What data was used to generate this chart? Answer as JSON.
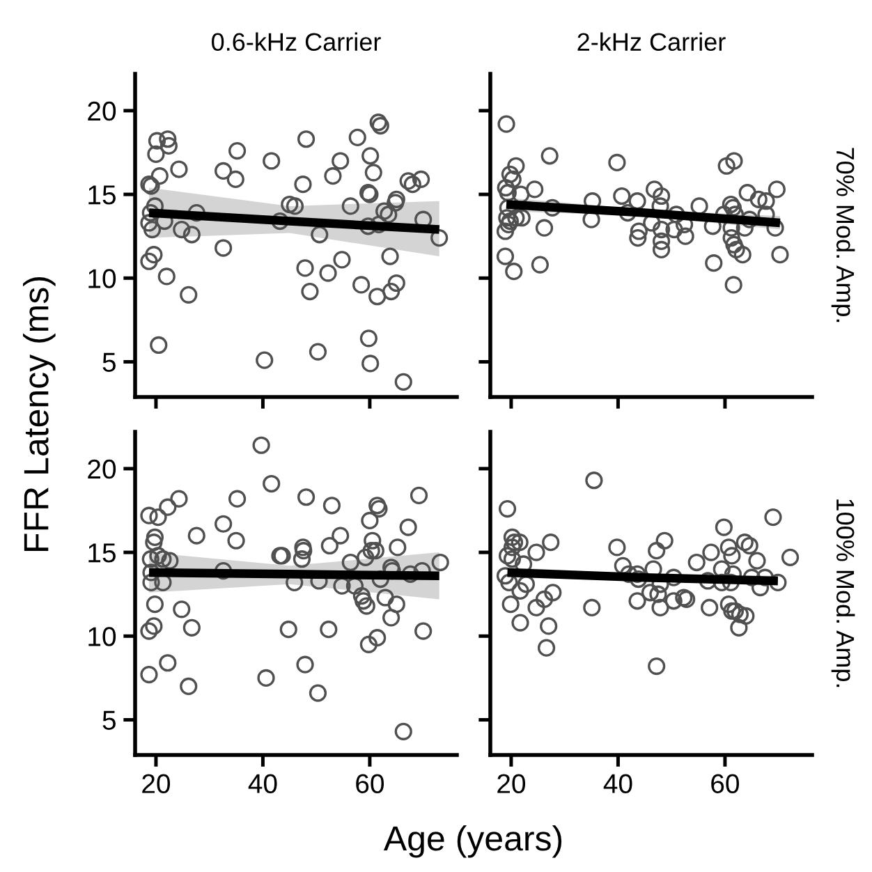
{
  "chart_data": [
    {
      "type": "scatter",
      "title": "0.6-kHz Carrier",
      "ylabel": "FFR Latency (ms)",
      "xlim": [
        16.1,
        76.3
      ],
      "ylim": [
        2.9,
        22.2
      ],
      "xticks": [
        20,
        40,
        60
      ],
      "yticks": [
        5,
        10,
        15,
        20
      ],
      "tick_labels": "y",
      "series": [
        {
          "marker": "circle",
          "color": "#505050",
          "x": [
            18.7,
            20,
            20.2,
            22.2,
            22.4,
            20.7,
            24.3,
            19.1,
            19.8,
            19,
            18.7,
            19.3,
            21.6,
            24.8,
            26.7,
            27.6,
            19.6,
            18.7,
            22,
            26.1,
            20.5,
            32.6,
            35.2,
            34.9,
            32.6,
            41.6,
            40.3,
            43.2,
            45,
            46,
            47.5,
            48.1,
            50.6,
            47.9,
            48.8,
            52.2,
            54.8,
            50.3,
            53.1,
            54.5,
            56.4,
            57.7,
            58.4,
            59.7,
            60.1,
            60.7,
            60,
            59.7,
            61.7,
            61.6,
            62,
            61.4,
            59.8,
            60.1,
            62.7,
            63.5,
            63.8,
            64,
            65,
            65,
            64.8,
            67.2,
            68,
            69.6,
            70,
            73,
            66.3
          ],
          "values": [
            15.6,
            17.4,
            18.2,
            18.3,
            17.9,
            16.1,
            16.5,
            15.5,
            14.3,
            13.9,
            13.3,
            12.9,
            13.4,
            12.9,
            12.6,
            13.9,
            11.4,
            11,
            10.1,
            9,
            6,
            16.4,
            17.6,
            15.9,
            11.8,
            17,
            5.1,
            13.4,
            14.4,
            14.3,
            15.6,
            18.3,
            12.6,
            10.6,
            9.2,
            10.3,
            11.1,
            5.6,
            16.1,
            17,
            14.3,
            18.4,
            9.6,
            15.1,
            17.3,
            16.3,
            15,
            13.1,
            13.2,
            19.3,
            19.1,
            8.9,
            6.4,
            4.9,
            14,
            13.8,
            11.3,
            9.2,
            9.7,
            14.7,
            14.5,
            15.8,
            15.6,
            15.9,
            13.5,
            12.4,
            3.8
          ]
        },
        {
          "type": "line",
          "color": "#000000",
          "x": [
            18.7,
            45,
            73
          ],
          "values": [
            13.9,
            13.4,
            12.9
          ],
          "lower": [
            12.4,
            12.7,
            11.3
          ],
          "upper": [
            15.4,
            14.3,
            14.6
          ]
        }
      ]
    },
    {
      "type": "scatter",
      "title": "2-kHz Carrier",
      "annotations": [
        "70% Mod. Amp."
      ],
      "xlim": [
        16.1,
        76.3
      ],
      "ylim": [
        2.9,
        22.2
      ],
      "xticks": [
        20,
        40,
        60
      ],
      "yticks": [
        5,
        10,
        15,
        20
      ],
      "tick_labels": false,
      "series": [
        {
          "marker": "circle",
          "color": "#505050",
          "x": [
            19.1,
            19.8,
            20.9,
            20.3,
            19,
            19.4,
            21.8,
            24.4,
            27.2,
            19.4,
            19.2,
            19.8,
            18.9,
            19.5,
            20.9,
            22,
            26.2,
            27.7,
            18.9,
            20.5,
            25.4,
            35.2,
            35,
            39.8,
            40.7,
            41.8,
            43.6,
            43.9,
            43.7,
            46.8,
            48.1,
            47.9,
            46.3,
            48.1,
            48.1,
            48.1,
            50.9,
            50.5,
            52.6,
            52.4,
            55.2,
            57.7,
            57.9,
            59.8,
            60.3,
            61.7,
            61.1,
            61.5,
            61.9,
            61.2,
            61.2,
            61.7,
            62.1,
            63.3,
            63.7,
            64.2,
            61.6,
            66.3,
            67.7,
            67.7,
            69.7,
            69.4,
            70.3,
            64.6
          ],
          "values": [
            19.2,
            16.2,
            16.7,
            15.9,
            15.4,
            15.1,
            15,
            15.3,
            17.3,
            14.2,
            13.6,
            13.4,
            12.8,
            13.2,
            13.6,
            13.6,
            13,
            14.2,
            11.3,
            10.4,
            10.8,
            14.6,
            13.5,
            16.9,
            14.9,
            13.9,
            14.6,
            12.8,
            12.4,
            15.3,
            14.9,
            14.3,
            13.3,
            12.9,
            12.2,
            11.7,
            13.8,
            12.9,
            12.5,
            13.2,
            14.3,
            13.1,
            10.9,
            13.8,
            16.7,
            17,
            14.4,
            14.2,
            13.8,
            13,
            12.4,
            12,
            11.7,
            11.4,
            13,
            15.1,
            9.6,
            14.7,
            14.6,
            13.8,
            15.3,
            13,
            11.4,
            13.5
          ]
        },
        {
          "type": "line",
          "color": "#000000",
          "x": [
            19.1,
            45,
            70.3
          ],
          "values": [
            14.4,
            13.9,
            13.3
          ],
          "lower": [
            14.0,
            13.7,
            12.9
          ],
          "upper": [
            14.8,
            14.1,
            13.7
          ]
        }
      ]
    },
    {
      "type": "scatter",
      "xlabel": "Age (years)",
      "xlim": [
        16.1,
        76.3
      ],
      "ylim": [
        2.9,
        22.2
      ],
      "xticks": [
        20,
        40,
        60
      ],
      "yticks": [
        5,
        10,
        15,
        20
      ],
      "series": [
        {
          "marker": "circle",
          "color": "#505050",
          "x": [
            39.7,
            41.6,
            18.7,
            20.4,
            22.2,
            24.3,
            19.8,
            19.6,
            19,
            20.4,
            21.3,
            22.6,
            19.1,
            19.1,
            21.3,
            19.8,
            24.8,
            19.6,
            18.7,
            26.7,
            22.2,
            18.7,
            26.1,
            27.6,
            32.6,
            32.6,
            35.2,
            35,
            43.2,
            43.6,
            40.6,
            44.8,
            45.9,
            47.5,
            47.6,
            47.3,
            48.1,
            47.9,
            50.5,
            50.3,
            52.3,
            52.5,
            52.9,
            54.5,
            54.8,
            56.4,
            57.2,
            58.5,
            58.8,
            59.4,
            59.2,
            60,
            60.5,
            60.3,
            61.1,
            61.4,
            61.7,
            59.8,
            61.4,
            62,
            62.9,
            64,
            64.2,
            64,
            65,
            65.2,
            67.2,
            67.6,
            69.2,
            69.8,
            70,
            73.2,
            66.3
          ],
          "values": [
            21.4,
            19.1,
            17.2,
            17.1,
            17.7,
            18.2,
            15.9,
            15.6,
            14.6,
            14.8,
            14.6,
            14.5,
            13.8,
            13.2,
            13.2,
            11.9,
            11.6,
            10.6,
            10.3,
            10.5,
            8.4,
            7.7,
            7,
            16,
            16.7,
            13.9,
            18.2,
            15.7,
            14.8,
            14.8,
            7.5,
            10.4,
            13.2,
            15.3,
            15.1,
            14.6,
            18.3,
            8.3,
            13.3,
            6.6,
            10.4,
            15.4,
            17.8,
            16,
            13,
            14.4,
            13,
            12.4,
            12.1,
            11.8,
            14.7,
            16.9,
            15.7,
            15.1,
            15.1,
            17.8,
            17.6,
            9.5,
            9.9,
            13.4,
            12.3,
            14.1,
            13.9,
            11.1,
            11.9,
            15.3,
            16.5,
            13.7,
            18.4,
            13.9,
            10.3,
            14.4,
            4.3
          ]
        },
        {
          "type": "line",
          "color": "#000000",
          "x": [
            18.7,
            45,
            73
          ],
          "values": [
            13.8,
            13.7,
            13.6
          ],
          "lower": [
            12.6,
            13.1,
            12.2
          ],
          "upper": [
            15.0,
            14.2,
            15.0
          ]
        }
      ]
    },
    {
      "type": "scatter",
      "annotations": [
        "100% Mod. Amp."
      ],
      "xlim": [
        16.1,
        76.3
      ],
      "ylim": [
        2.9,
        22.2
      ],
      "xticks": [
        20,
        40,
        60
      ],
      "yticks": [
        5,
        10,
        15,
        20
      ],
      "tick_labels": "x",
      "series": [
        {
          "marker": "circle",
          "color": "#505050",
          "x": [
            35.5,
            19.3,
            20.2,
            20.6,
            21.6,
            20.2,
            19.3,
            20.2,
            27.4,
            24.7,
            22.3,
            18.9,
            19.6,
            21.7,
            22.8,
            19.9,
            21.7,
            24.7,
            26.2,
            27.8,
            27,
            26.6,
            35.1,
            39.8,
            40.9,
            42,
            43.6,
            43.8,
            43.6,
            46,
            46.6,
            47.2,
            48.7,
            47.9,
            47.9,
            47.5,
            47.2,
            50.4,
            50.4,
            52.3,
            52.8,
            54.7,
            56.8,
            57.1,
            57.4,
            59.4,
            59.4,
            59.8,
            60.7,
            61.3,
            61.5,
            61.1,
            60.7,
            61.3,
            61.9,
            62.8,
            63.9,
            62.6,
            63.7,
            64.6,
            66,
            65,
            66.6,
            67.5,
            69,
            69.9,
            72.2
          ],
          "values": [
            19.3,
            17.6,
            15.9,
            15.6,
            15.6,
            15.3,
            14.8,
            14.6,
            15.6,
            15,
            14.3,
            13.6,
            13.2,
            12.7,
            13.1,
            11.9,
            10.8,
            11.7,
            12.2,
            12.6,
            10.6,
            9.3,
            11.7,
            15.3,
            14.2,
            13.7,
            13.7,
            13.4,
            12.1,
            12.6,
            14,
            15.1,
            15.7,
            13.1,
            11.7,
            12.5,
            8.2,
            13.5,
            12.1,
            12.3,
            12.2,
            14.4,
            13.3,
            11.7,
            15,
            14,
            13.2,
            16.5,
            15.3,
            14.8,
            13.7,
            13.2,
            11.9,
            11.5,
            11.5,
            11.3,
            11.2,
            10.5,
            15.6,
            15.4,
            14.5,
            13.5,
            12.9,
            13.5,
            17.1,
            13.2,
            14.7
          ]
        },
        {
          "type": "line",
          "color": "#000000",
          "x": [
            19.3,
            45,
            69.9
          ],
          "values": [
            13.8,
            13.5,
            13.3
          ],
          "lower": [
            13.5,
            13.3,
            13.0
          ],
          "upper": [
            14.1,
            13.7,
            13.6
          ]
        }
      ]
    }
  ]
}
